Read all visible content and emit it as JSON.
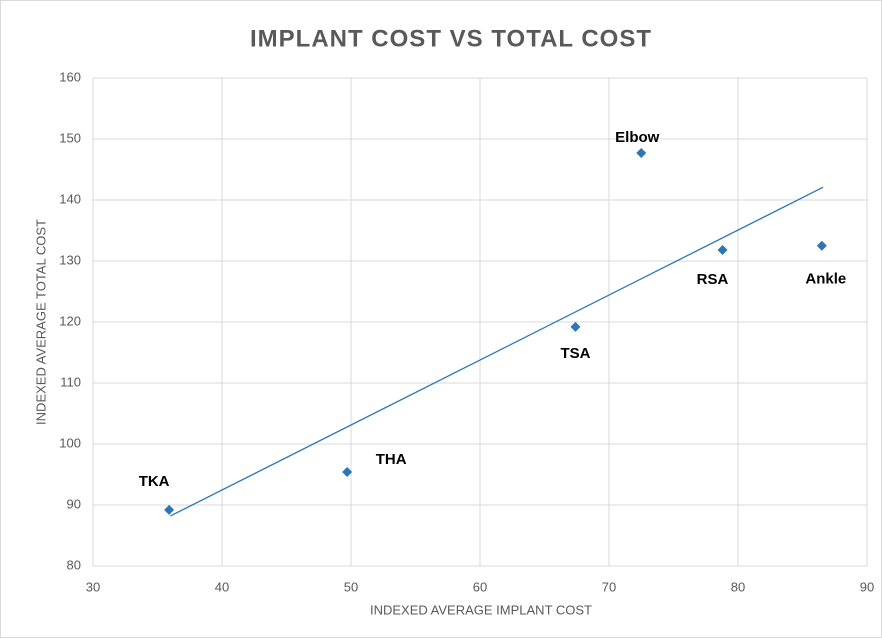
{
  "chart_data": {
    "type": "scatter",
    "title": "IMPLANT COST VS TOTAL COST",
    "x_label": "INDEXED AVERAGE IMPLANT COST",
    "y_label": "INDEXED AVERAGE TOTAL COST",
    "x": [
      35.9,
      49.7,
      67.4,
      72.5,
      78.8,
      86.5
    ],
    "y": [
      89.2,
      95.4,
      119.2,
      147.7,
      131.8,
      132.5
    ],
    "point_labels": [
      "TKA",
      "THA",
      "TSA",
      "Elbow",
      "RSA",
      "Ankle"
    ],
    "color": "#2e75b6",
    "trendline": {
      "x": [
        36.0,
        86.6
      ],
      "y": [
        88.2,
        142.1
      ]
    },
    "xlim": [
      30,
      90
    ],
    "xticks": [
      30,
      40,
      50,
      60,
      70,
      80,
      90
    ],
    "ylim": [
      80,
      160
    ],
    "yticks": [
      80,
      90,
      100,
      110,
      120,
      130,
      140,
      150,
      160
    ],
    "grid": true
  }
}
